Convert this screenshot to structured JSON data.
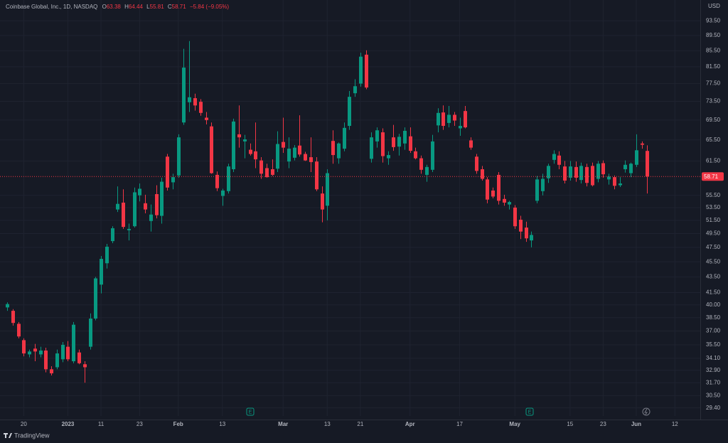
{
  "chart_data": {
    "type": "candlestick",
    "title": "Coinbase Global, Inc., 1D, NASDAQ",
    "ohlc_labels": [
      "O",
      "H",
      "L",
      "C"
    ],
    "change_label": "−5.84 (−9.05%)",
    "currency": "USD",
    "branding": "TradingView",
    "event_labels": [
      "E",
      "E"
    ],
    "up_color": "#089981",
    "down_color": "#f23645",
    "log_scale": true,
    "grid": true,
    "ylim": [
      28.7,
      99.5
    ],
    "yticks": [
      {
        "value": 93.5,
        "label": "93.50"
      },
      {
        "value": 89.5,
        "label": "89.50"
      },
      {
        "value": 85.5,
        "label": "85.50"
      },
      {
        "value": 81.5,
        "label": "81.50"
      },
      {
        "value": 77.5,
        "label": "77.50"
      },
      {
        "value": 73.5,
        "label": "73.50"
      },
      {
        "value": 69.5,
        "label": "69.50"
      },
      {
        "value": 65.5,
        "label": "65.50"
      },
      {
        "value": 61.5,
        "label": "61.50"
      },
      {
        "value": 55.5,
        "label": "55.50"
      },
      {
        "value": 53.5,
        "label": "53.50"
      },
      {
        "value": 51.5,
        "label": "51.50"
      },
      {
        "value": 49.5,
        "label": "49.50"
      },
      {
        "value": 47.5,
        "label": "47.50"
      },
      {
        "value": 45.5,
        "label": "45.50"
      },
      {
        "value": 43.5,
        "label": "43.50"
      },
      {
        "value": 41.5,
        "label": "41.50"
      },
      {
        "value": 40,
        "label": "40.00"
      },
      {
        "value": 38.5,
        "label": "38.50"
      },
      {
        "value": 37,
        "label": "37.00"
      },
      {
        "value": 35.5,
        "label": "35.50"
      },
      {
        "value": 34.1,
        "label": "34.10"
      },
      {
        "value": 32.9,
        "label": "32.90"
      },
      {
        "value": 31.7,
        "label": "31.70"
      },
      {
        "value": 30.5,
        "label": "30.50"
      },
      {
        "value": 29.4,
        "label": "29.40"
      }
    ],
    "xlim": [
      -1.3,
      125.6
    ],
    "xticks": [
      {
        "value": 3,
        "label": "20"
      },
      {
        "value": 11,
        "label": "2023"
      },
      {
        "value": 17,
        "label": "11"
      },
      {
        "value": 24,
        "label": "23"
      },
      {
        "value": 31,
        "label": "Feb"
      },
      {
        "value": 39,
        "label": "13"
      },
      {
        "value": 50,
        "label": "Mar"
      },
      {
        "value": 58,
        "label": "13"
      },
      {
        "value": 64,
        "label": "21"
      },
      {
        "value": 73,
        "label": "Apr"
      },
      {
        "value": 82,
        "label": "17"
      },
      {
        "value": 92,
        "label": "May"
      },
      {
        "value": 102,
        "label": "15"
      },
      {
        "value": 108,
        "label": "23"
      },
      {
        "value": 114,
        "label": "Jun"
      },
      {
        "value": 121,
        "label": "12"
      }
    ],
    "open": [
      39.7,
      39.3,
      37.8,
      36.0,
      34.5,
      35.1,
      34.5,
      34.9,
      33.0,
      33.2,
      34.0,
      35.3,
      33.8,
      34.7,
      33.5,
      35.3,
      38.4,
      42.5,
      45.3,
      48.4,
      53.2,
      54.3,
      50.0,
      50.6,
      55.5,
      54.2,
      51.4,
      55.7,
      52.2,
      62.3,
      57.7,
      58.9,
      69.0,
      73.3,
      74.2,
      73.4,
      70.0,
      68.2,
      59.0,
      55.4,
      56.2,
      60.0,
      66.6,
      65.2,
      63.6,
      63.3,
      61.6,
      60.2,
      60.0,
      60.1,
      65.1,
      61.4,
      62.1,
      64.4,
      62.8,
      62.2,
      61.4,
      55.8,
      53.8,
      65.3,
      62.0,
      63.8,
      68.3,
      75.3,
      77.5,
      84.5,
      61.9,
      65.2,
      67.0,
      62.0,
      66.0,
      64.2,
      64.8,
      66.2,
      63.3,
      62.0,
      59.0,
      59.9,
      68.4,
      71.1,
      68.9,
      70.6,
      67.8,
      71.4,
      65.4,
      62.3,
      60.0,
      58.2,
      56.3,
      59.0,
      54.9,
      54.0,
      53.5,
      51.6,
      50.4,
      48.5,
      54.6,
      56.2,
      58.4,
      61.7,
      62.5,
      60.5,
      58.5,
      60.4,
      58.1,
      60.4,
      60.6,
      58.3,
      61.1,
      58.2,
      58.6,
      57.2,
      60.0,
      59.3,
      60.8,
      64.8,
      63.38
    ],
    "high": [
      40.3,
      39.5,
      38.0,
      36.2,
      35.0,
      35.6,
      35.3,
      35.2,
      33.3,
      35.0,
      35.8,
      35.9,
      38.0,
      35.0,
      33.8,
      39.0,
      43.5,
      46.3,
      48.0,
      50.6,
      57.0,
      56.5,
      51.0,
      56.8,
      57.5,
      55.6,
      54.0,
      57.2,
      58.5,
      62.8,
      59.2,
      66.6,
      86.0,
      88.0,
      75.2,
      74.0,
      71.2,
      69.0,
      59.6,
      56.6,
      61.0,
      69.8,
      72.6,
      66.5,
      64.8,
      69.0,
      62.2,
      61.0,
      61.8,
      67.2,
      70.0,
      66.0,
      64.5,
      70.5,
      63.2,
      66.0,
      62.2,
      57.0,
      60.0,
      67.4,
      65.0,
      69.0,
      75.8,
      78.5,
      85.0,
      85.6,
      67.0,
      68.0,
      67.8,
      63.3,
      68.5,
      66.7,
      68.0,
      68.0,
      64.0,
      62.5,
      60.8,
      66.5,
      72.0,
      72.6,
      72.5,
      71.2,
      70.0,
      72.5,
      66.0,
      62.8,
      60.6,
      58.6,
      56.8,
      59.5,
      55.6,
      54.6,
      53.9,
      52.2,
      51.3,
      49.8,
      58.8,
      59.2,
      61.0,
      63.5,
      63.3,
      61.5,
      61.5,
      61.4,
      61.2,
      61.0,
      61.2,
      61.5,
      61.6,
      59.2,
      58.9,
      58.6,
      61.6,
      61.2,
      66.6,
      65.2,
      64.44
    ],
    "low": [
      39.3,
      37.6,
      36.2,
      34.3,
      34.2,
      33.8,
      34.2,
      32.7,
      32.4,
      33.0,
      33.7,
      33.8,
      33.6,
      33.5,
      31.7,
      35.0,
      38.2,
      41.4,
      44.6,
      48.1,
      52.8,
      50.2,
      48.5,
      50.4,
      54.5,
      52.6,
      49.8,
      51.8,
      51.0,
      56.3,
      56.5,
      58.5,
      68.5,
      71.2,
      71.5,
      70.4,
      68.6,
      59.2,
      56.2,
      53.8,
      55.8,
      59.5,
      64.0,
      62.0,
      62.5,
      60.2,
      58.3,
      58.5,
      58.8,
      59.5,
      63.0,
      60.2,
      61.6,
      62.3,
      61.5,
      59.5,
      56.2,
      51.2,
      51.5,
      61.0,
      61.0,
      63.3,
      67.5,
      74.5,
      76.8,
      76.2,
      61.2,
      64.0,
      61.2,
      60.8,
      63.4,
      62.5,
      63.6,
      63.0,
      61.8,
      59.2,
      57.8,
      59.5,
      67.0,
      67.5,
      68.0,
      68.3,
      66.3,
      67.8,
      63.6,
      59.2,
      58.0,
      54.2,
      55.0,
      54.0,
      53.8,
      53.2,
      50.2,
      48.7,
      48.3,
      47.5,
      54.2,
      55.5,
      57.6,
      61.0,
      60.0,
      57.5,
      58.0,
      57.8,
      57.5,
      57.0,
      57.0,
      57.7,
      58.5,
      57.3,
      56.5,
      56.9,
      59.4,
      58.6,
      60.4,
      63.8,
      55.81
    ],
    "close": [
      40.1,
      37.9,
      36.4,
      34.6,
      34.8,
      34.8,
      34.9,
      33.0,
      32.6,
      34.6,
      35.5,
      34.0,
      37.7,
      33.6,
      33.2,
      38.4,
      43.3,
      45.9,
      47.6,
      50.3,
      54.1,
      50.5,
      50.2,
      56.0,
      56.6,
      53.2,
      52.4,
      52.3,
      57.8,
      56.8,
      58.6,
      66.0,
      81.3,
      74.4,
      72.6,
      71.0,
      69.5,
      59.3,
      56.7,
      56.3,
      60.5,
      69.2,
      66.0,
      65.6,
      62.8,
      61.8,
      59.2,
      58.6,
      59.0,
      64.7,
      64.0,
      63.8,
      64.0,
      62.7,
      61.6,
      61.3,
      56.5,
      53.2,
      59.3,
      62.6,
      64.8,
      67.9,
      74.5,
      76.9,
      84.0,
      76.6,
      66.0,
      67.4,
      62.4,
      62.6,
      64.1,
      66.1,
      67.3,
      63.4,
      62.0,
      59.9,
      60.4,
      65.2,
      71.0,
      68.3,
      70.6,
      69.4,
      68.3,
      68.0,
      64.0,
      59.7,
      58.3,
      54.8,
      55.3,
      54.6,
      54.3,
      54.4,
      50.6,
      49.8,
      48.8,
      49.3,
      58.2,
      58.3,
      60.6,
      62.8,
      60.8,
      58.0,
      60.5,
      58.5,
      60.6,
      57.6,
      57.2,
      61.0,
      59.1,
      58.7,
      57.1,
      57.5,
      60.8,
      61.0,
      63.5,
      64.55,
      58.71
    ]
  }
}
